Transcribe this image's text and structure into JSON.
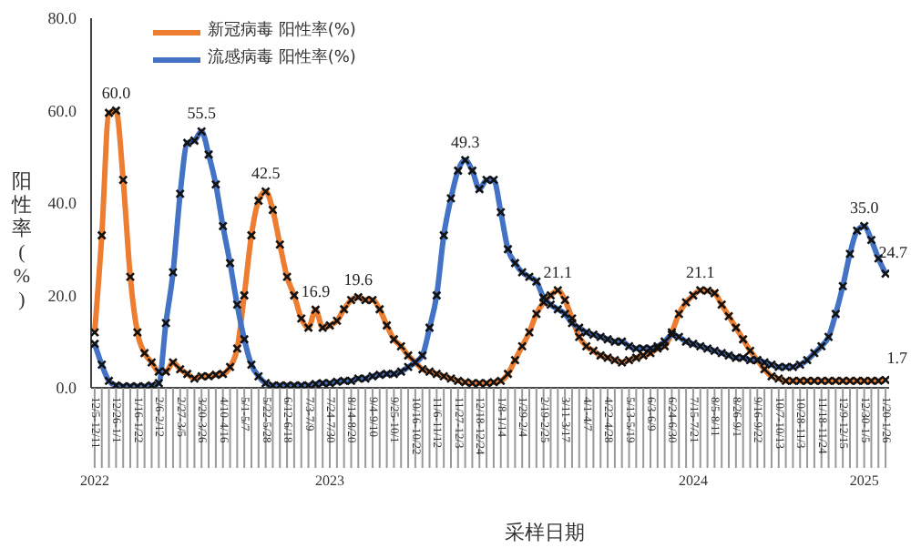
{
  "chart_data": {
    "type": "line",
    "xlabel": "采样日期",
    "ylabel": "阳性率 (%)",
    "categories": [
      "12/5-12/11",
      null,
      null,
      "12/26-1/1",
      null,
      null,
      "1/16-1/22",
      null,
      null,
      "2/6-2/12",
      null,
      null,
      "2/27-3/5",
      null,
      null,
      "3/20-3/26",
      null,
      null,
      "4/10-4/16",
      null,
      null,
      "5/1-5/7",
      null,
      null,
      "5/22-5/28",
      null,
      null,
      "6/12-6/18",
      null,
      null,
      "7/3-7/9",
      null,
      null,
      "7/24-7/30",
      null,
      null,
      "8/14-8/20",
      null,
      null,
      "9/4-9/10",
      null,
      null,
      "9/25-10/1",
      null,
      null,
      "10/16-10/22",
      null,
      null,
      "11/6-11/12",
      null,
      null,
      "11/27-12/3",
      null,
      null,
      "12/18-12/24",
      null,
      null,
      "1/8-1/14",
      null,
      null,
      "1/29-2/4",
      null,
      null,
      "2/19-2/25",
      null,
      null,
      "3/11-3/17",
      null,
      null,
      "4/1-4/7",
      null,
      null,
      "4/22-4/28",
      null,
      null,
      "5/13-5/19",
      null,
      null,
      "6/3-6/9",
      null,
      null,
      "6/24-6/30",
      null,
      null,
      "7/15-7/21",
      null,
      null,
      "8/5-8/11",
      null,
      null,
      "8/26-9/1",
      null,
      null,
      "9/16-9/22",
      null,
      null,
      "10/7-10/13",
      null,
      null,
      "10/28-11/3",
      null,
      null,
      "11/18-11/24",
      null,
      null,
      "12/9-12/15",
      null,
      null,
      "12/30-1/5",
      null,
      null,
      "1/20-1/26"
    ],
    "series": [
      {
        "name": "新冠病毒 阳性率(%)",
        "color": "#ed7d31",
        "values": [
          12,
          33,
          59.5,
          60.0,
          45,
          24,
          12,
          7.5,
          5.5,
          3.5,
          3.5,
          5.5,
          4,
          3,
          2,
          2.5,
          2.5,
          2.8,
          3,
          4.5,
          8.5,
          20,
          33,
          40.5,
          42.5,
          38.5,
          31,
          24,
          20,
          15,
          13,
          16.9,
          13,
          13.5,
          14.5,
          17,
          19,
          19.6,
          19,
          19,
          17,
          13.5,
          10.5,
          9,
          7,
          5.5,
          4,
          3.5,
          3,
          2.5,
          2,
          1.5,
          1.2,
          1,
          1,
          1,
          1.2,
          1.5,
          3,
          6,
          9,
          12,
          16,
          18.5,
          20,
          21.1,
          19,
          15,
          11,
          9,
          8,
          7,
          6.5,
          6,
          5.5,
          6,
          6.5,
          7,
          7.5,
          8.5,
          9,
          12,
          16,
          18.5,
          20,
          21.1,
          21,
          20.5,
          18,
          15.5,
          13,
          10.5,
          8,
          6,
          4,
          2.5,
          2,
          1.5,
          1.5,
          1.5,
          1.5,
          1.5,
          1.5,
          1.5,
          1.5,
          1.5,
          1.5,
          1.5,
          1.5,
          1.5,
          1.5,
          1.7
        ],
        "value_labels": [
          null,
          null,
          null,
          "60.0",
          null,
          null,
          null,
          null,
          null,
          null,
          null,
          null,
          null,
          null,
          null,
          null,
          null,
          null,
          null,
          null,
          null,
          null,
          null,
          null,
          "42.5",
          null,
          null,
          null,
          null,
          null,
          null,
          "16.9",
          null,
          null,
          null,
          null,
          null,
          "19.6",
          null,
          null,
          null,
          null,
          null,
          null,
          null,
          null,
          null,
          null,
          null,
          null,
          null,
          null,
          null,
          null,
          null,
          null,
          null,
          null,
          null,
          null,
          null,
          null,
          null,
          null,
          null,
          "21.1",
          null,
          null,
          null,
          null,
          null,
          null,
          null,
          null,
          null,
          null,
          null,
          null,
          null,
          null,
          null,
          null,
          null,
          null,
          null,
          "21.1",
          null,
          null,
          null,
          null,
          null,
          null,
          null,
          null,
          null,
          null,
          null,
          null,
          null,
          null,
          null,
          null,
          null,
          null,
          null,
          null,
          null,
          null,
          null,
          null,
          null,
          "1.7"
        ]
      },
      {
        "name": "流感病毒 阳性率(%)",
        "color": "#4472c4",
        "values": [
          9.5,
          5,
          1.5,
          0.5,
          0.3,
          0.3,
          0.3,
          0.3,
          0.5,
          1,
          14,
          25,
          42,
          53,
          53.5,
          55.5,
          50.5,
          44,
          35,
          27,
          18,
          10.5,
          5,
          2.5,
          1,
          0.5,
          0.5,
          0.5,
          0.5,
          0.5,
          0.5,
          0.8,
          1,
          1,
          1.3,
          1.5,
          1.5,
          2,
          2,
          2.5,
          2.8,
          3,
          3,
          3.5,
          4.5,
          5.5,
          7,
          13,
          20,
          33,
          41,
          47,
          49.3,
          47,
          43,
          45,
          45,
          38,
          30,
          27,
          25,
          24,
          23,
          19.5,
          18,
          17,
          16,
          14,
          13,
          12,
          11.5,
          11,
          10.5,
          10,
          10,
          9,
          8.5,
          8.5,
          8.5,
          9,
          10,
          11.5,
          11,
          10,
          9.5,
          9,
          8.5,
          8,
          7.5,
          7,
          6.5,
          6.5,
          6,
          6,
          5.5,
          5,
          4.5,
          4.5,
          4.5,
          5,
          6,
          7.5,
          9,
          11,
          16,
          22,
          29,
          34,
          35.0,
          32,
          28,
          24.7
        ],
        "value_labels": [
          null,
          null,
          null,
          null,
          null,
          null,
          null,
          null,
          null,
          null,
          null,
          null,
          null,
          null,
          null,
          "55.5",
          null,
          null,
          null,
          null,
          null,
          null,
          null,
          null,
          null,
          null,
          null,
          null,
          null,
          null,
          null,
          null,
          null,
          null,
          null,
          null,
          null,
          null,
          null,
          null,
          null,
          null,
          null,
          null,
          null,
          null,
          null,
          null,
          null,
          null,
          null,
          null,
          "49.3",
          null,
          null,
          null,
          null,
          null,
          null,
          null,
          null,
          null,
          null,
          null,
          null,
          null,
          null,
          null,
          null,
          null,
          null,
          null,
          null,
          null,
          null,
          null,
          null,
          null,
          null,
          null,
          null,
          null,
          null,
          null,
          null,
          null,
          null,
          null,
          null,
          null,
          null,
          null,
          null,
          null,
          null,
          null,
          null,
          null,
          null,
          null,
          null,
          null,
          null,
          null,
          null,
          null,
          null,
          null,
          "35.0",
          null,
          null,
          "24.7"
        ]
      }
    ],
    "ylim": [
      0,
      80
    ],
    "yticks": [
      {
        "value": 0,
        "label": "0.0"
      },
      {
        "value": 20,
        "label": "20.0"
      },
      {
        "value": 40,
        "label": "40.0"
      },
      {
        "value": 60,
        "label": "60.0"
      },
      {
        "value": 80,
        "label": "80.0"
      }
    ],
    "annotations": [
      {
        "text": "2022",
        "x": "12/5-12/11"
      },
      {
        "text": "2023",
        "x": "7/24-7/30"
      },
      {
        "text": "2024",
        "x": "7/15-7/21"
      },
      {
        "text": "2025",
        "x": "12/30-1/5"
      }
    ],
    "legend": "top left",
    "marker": "cross",
    "line_style": "solid",
    "grid": false
  }
}
